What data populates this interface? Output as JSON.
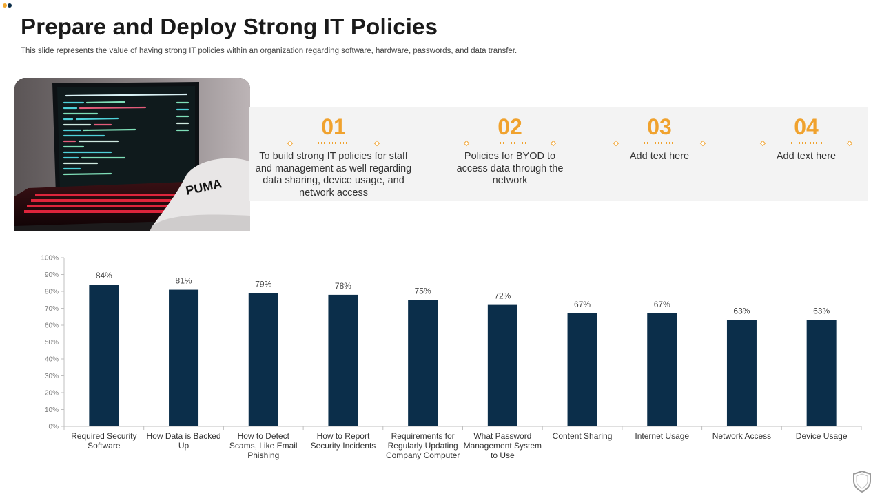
{
  "header": {
    "title": "Prepare and Deploy Strong IT Policies",
    "subtitle": "This slide represents the value of having strong IT policies within an organization regarding software, hardware, passwords, and data transfer."
  },
  "policies": [
    {
      "number": "01",
      "text": "To build strong IT policies for staff and management as well regarding data sharing, device usage, and network access"
    },
    {
      "number": "02",
      "text": "Policies for BYOD to access data through the network"
    },
    {
      "number": "03",
      "text": "Add text here"
    },
    {
      "number": "04",
      "text": "Add text here"
    }
  ],
  "colors": {
    "accent": "#f0a22e",
    "bar": "#0b2e4a",
    "band": "#f3f3f3"
  },
  "chart_data": {
    "type": "bar",
    "categories": [
      "Required Security Software",
      "How Data is Backed Up",
      "How to Detect Scams, Like Email Phishing",
      "How to Report Security Incidents",
      "Requirements for Regularly Updating Company Computer",
      "What Password Management System to Use",
      "Content Sharing",
      "Internet Usage",
      "Network Access",
      "Device Usage"
    ],
    "values": [
      84,
      81,
      79,
      78,
      75,
      72,
      67,
      67,
      63,
      63
    ],
    "data_labels": [
      "84%",
      "81%",
      "79%",
      "78%",
      "75%",
      "72%",
      "67%",
      "67%",
      "63%",
      "63%"
    ],
    "y_ticks": [
      "0%",
      "10%",
      "20%",
      "30%",
      "40%",
      "50%",
      "60%",
      "70%",
      "80%",
      "90%",
      "100%"
    ],
    "ylim": [
      0,
      100
    ],
    "title": "",
    "xlabel": "",
    "ylabel": "",
    "grid": false
  }
}
